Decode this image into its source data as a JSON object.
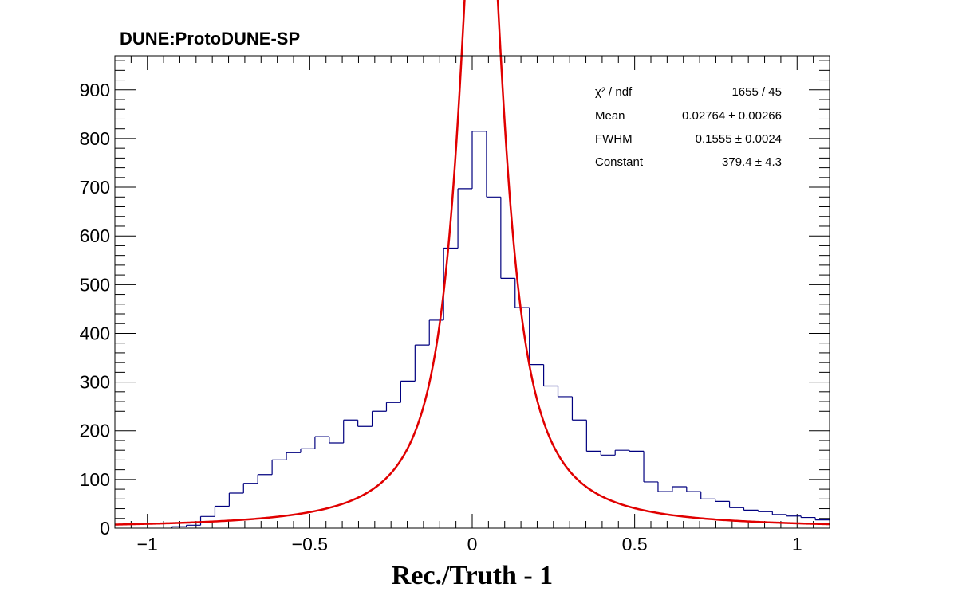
{
  "chart_data": {
    "type": "histogram",
    "title": "DUNE:ProtoDUNE-SP",
    "xlabel": "Rec./Truth - 1",
    "ylabel": "",
    "xlim": [
      -1.1,
      1.1
    ],
    "ylim": [
      0,
      970
    ],
    "x_ticks": [
      {
        "value": -1,
        "label": "−1"
      },
      {
        "value": -0.5,
        "label": "−0.5"
      },
      {
        "value": 0,
        "label": "0"
      },
      {
        "value": 0.5,
        "label": "0.5"
      },
      {
        "value": 1,
        "label": "1"
      }
    ],
    "y_ticks": [
      0,
      100,
      200,
      300,
      400,
      500,
      600,
      700,
      800,
      900
    ],
    "histogram": {
      "name": "",
      "color": "#00007f",
      "bin_width": 0.044,
      "bin_low_edges": [
        -0.924,
        -0.88,
        -0.836,
        -0.792,
        -0.748,
        -0.704,
        -0.66,
        -0.616,
        -0.572,
        -0.528,
        -0.484,
        -0.44,
        -0.396,
        -0.352,
        -0.308,
        -0.264,
        -0.22,
        -0.176,
        -0.132,
        -0.088,
        -0.044,
        0.0,
        0.044,
        0.088,
        0.132,
        0.176,
        0.22,
        0.264,
        0.308,
        0.352,
        0.396,
        0.44,
        0.484,
        0.528,
        0.572,
        0.616,
        0.66,
        0.704,
        0.748,
        0.792,
        0.836,
        0.88,
        0.924,
        0.968,
        1.012,
        1.056
      ],
      "counts": [
        3,
        6,
        24,
        45,
        72,
        92,
        110,
        140,
        155,
        163,
        188,
        175,
        222,
        209,
        240,
        258,
        302,
        376,
        427,
        575,
        697,
        815,
        680,
        513,
        453,
        336,
        292,
        270,
        222,
        158,
        150,
        160,
        158,
        95,
        75,
        85,
        75,
        60,
        55,
        42,
        37,
        34,
        28,
        25,
        22,
        17
      ]
    },
    "fit": {
      "name": "",
      "color": "#e00000",
      "function": "lorentzian",
      "mean": 0.02764,
      "fwhm": 0.1555,
      "constant": 379.4
    },
    "stats_box": {
      "rows": [
        {
          "label": "χ² / ndf",
          "value": "1655 / 45"
        },
        {
          "label": "Mean",
          "value": "0.02764 ± 0.00266"
        },
        {
          "label": "FWHM",
          "value": "0.1555 ± 0.0024"
        },
        {
          "label": "Constant",
          "value": "379.4 ± 4.3"
        }
      ]
    }
  }
}
